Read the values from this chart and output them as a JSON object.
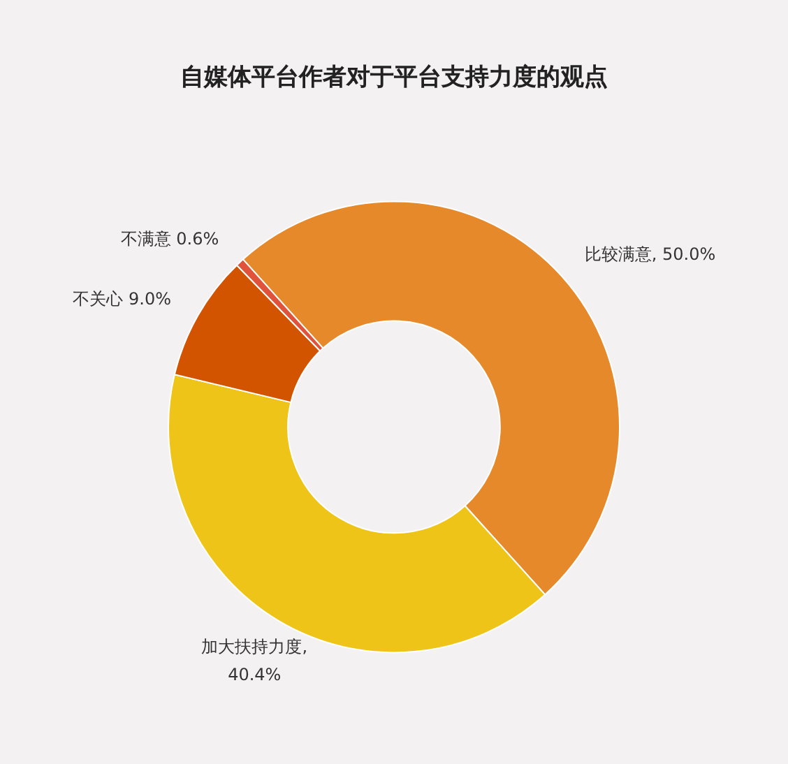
{
  "chart_data": {
    "type": "donut",
    "title": "自媒体平台作者对于平台支持力度的观点",
    "categories": [
      "比较满意",
      "加大扶持力度",
      "不关心",
      "不满意"
    ],
    "values": [
      50.0,
      40.4,
      9.0,
      0.6
    ],
    "colors": [
      "#e6892b",
      "#efc418",
      "#d35400",
      "#e0533a"
    ],
    "value_labels": [
      ", 50.0%",
      ",\n40.4%",
      " 9.0%",
      " 0.6%"
    ],
    "legend": false
  }
}
